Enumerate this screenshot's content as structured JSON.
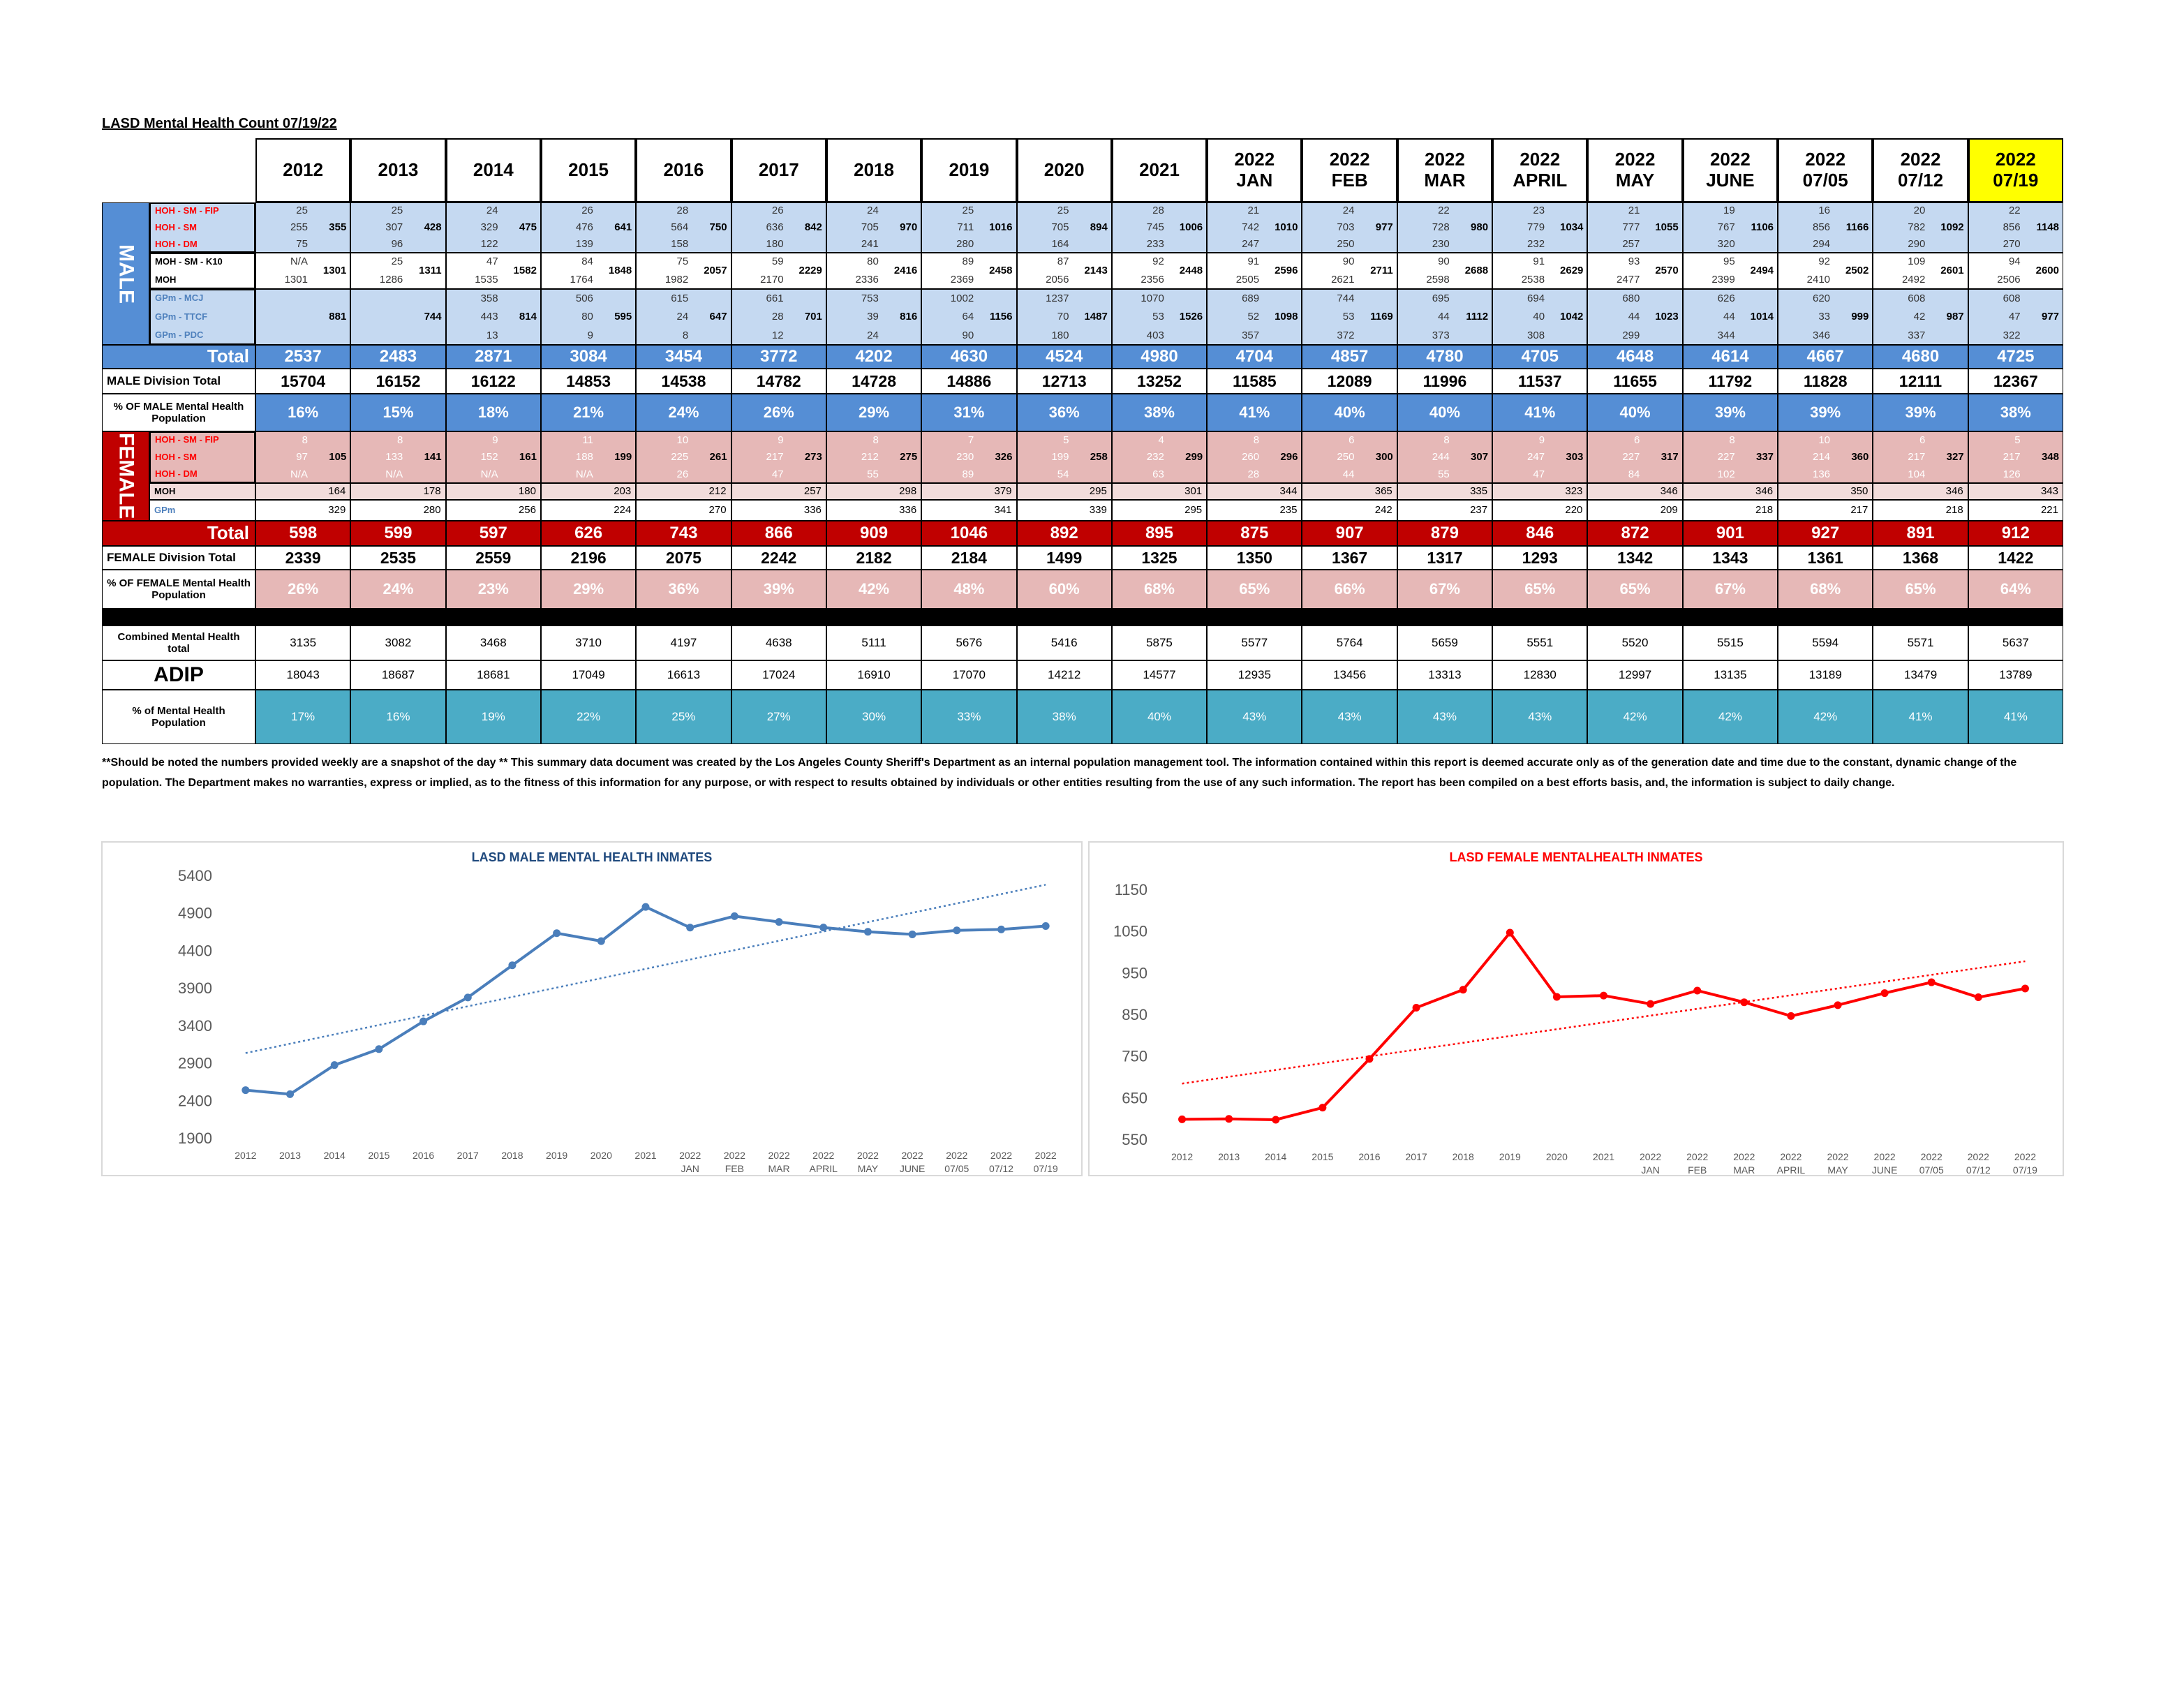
{
  "title": "LASD Mental Health Count 07/19/22",
  "columns": [
    [
      "2012"
    ],
    [
      "2013"
    ],
    [
      "2014"
    ],
    [
      "2015"
    ],
    [
      "2016"
    ],
    [
      "2017"
    ],
    [
      "2018"
    ],
    [
      "2019"
    ],
    [
      "2020"
    ],
    [
      "2021"
    ],
    [
      "2022",
      "JAN"
    ],
    [
      "2022",
      "FEB"
    ],
    [
      "2022",
      "MAR"
    ],
    [
      "2022",
      "APRIL"
    ],
    [
      "2022",
      "MAY"
    ],
    [
      "2022",
      "JUNE"
    ],
    [
      "2022",
      "07/05"
    ],
    [
      "2022",
      "07/12"
    ],
    [
      "2022",
      "07/19"
    ]
  ],
  "male": {
    "label": "MALE",
    "groups": [
      {
        "rows": [
          {
            "label": "HOH - SM - FIP",
            "values": [
              25,
              25,
              24,
              26,
              28,
              26,
              24,
              25,
              25,
              28,
              21,
              24,
              22,
              23,
              21,
              19,
              16,
              20,
              22
            ]
          },
          {
            "label": "HOH - SM",
            "values": [
              255,
              307,
              329,
              476,
              564,
              636,
              705,
              711,
              705,
              745,
              742,
              703,
              728,
              779,
              777,
              767,
              856,
              782,
              856
            ]
          },
          {
            "label": "HOH - DM",
            "values": [
              75,
              96,
              122,
              139,
              158,
              180,
              241,
              280,
              164,
              233,
              247,
              250,
              230,
              232,
              257,
              320,
              294,
              290,
              270
            ]
          }
        ],
        "subtotals": [
          355,
          428,
          475,
          641,
          750,
          842,
          970,
          1016,
          894,
          1006,
          1010,
          977,
          980,
          1034,
          1055,
          1106,
          1166,
          1092,
          1148
        ]
      },
      {
        "rows": [
          {
            "label": "MOH - SM - K10",
            "values": [
              "N/A",
              25,
              47,
              84,
              75,
              59,
              80,
              89,
              87,
              92,
              91,
              90,
              90,
              91,
              93,
              95,
              92,
              109,
              94
            ]
          },
          {
            "label": "MOH",
            "values": [
              1301,
              1286,
              1535,
              1764,
              1982,
              2170,
              2336,
              2369,
              2056,
              2356,
              2505,
              2621,
              2598,
              2538,
              2477,
              2399,
              2410,
              2492,
              2506
            ]
          }
        ],
        "subtotals": [
          1301,
          1311,
          1582,
          1848,
          2057,
          2229,
          2416,
          2458,
          2143,
          2448,
          2596,
          2711,
          2688,
          2629,
          2570,
          2494,
          2502,
          2601,
          2600
        ]
      },
      {
        "rows": [
          {
            "label": "GPm - MCJ",
            "values": [
              null,
              null,
              358,
              506,
              615,
              661,
              753,
              1002,
              1237,
              1070,
              689,
              744,
              695,
              694,
              680,
              626,
              620,
              608,
              608
            ]
          },
          {
            "label": "GPm - TTCF",
            "values": [
              null,
              null,
              443,
              80,
              24,
              28,
              39,
              64,
              70,
              53,
              52,
              53,
              44,
              40,
              44,
              44,
              33,
              42,
              47
            ]
          },
          {
            "label": "GPm - PDC",
            "values": [
              null,
              null,
              13,
              9,
              8,
              12,
              24,
              90,
              180,
              403,
              357,
              372,
              373,
              308,
              299,
              344,
              346,
              337,
              322
            ]
          }
        ],
        "subtotals": [
          881,
          744,
          814,
          595,
          647,
          701,
          816,
          1156,
          1487,
          1526,
          1098,
          1169,
          1112,
          1042,
          1023,
          1014,
          999,
          987,
          977
        ]
      }
    ],
    "total": {
      "label": "Total",
      "values": [
        2537,
        2483,
        2871,
        3084,
        3454,
        3772,
        4202,
        4630,
        4524,
        4980,
        4704,
        4857,
        4780,
        4705,
        4648,
        4614,
        4667,
        4680,
        4725
      ]
    },
    "division_total": {
      "label": "MALE Division Total",
      "values": [
        15704,
        16152,
        16122,
        14853,
        14538,
        14782,
        14728,
        14886,
        12713,
        13252,
        11585,
        12089,
        11996,
        11537,
        11655,
        11792,
        11828,
        12111,
        12367
      ]
    },
    "percent": {
      "label": "% OF MALE Mental Health Population",
      "values": [
        "16%",
        "15%",
        "18%",
        "21%",
        "24%",
        "26%",
        "29%",
        "31%",
        "36%",
        "38%",
        "41%",
        "40%",
        "40%",
        "41%",
        "40%",
        "39%",
        "39%",
        "39%",
        "38%"
      ]
    }
  },
  "female": {
    "label": "FEMALE",
    "groups": [
      {
        "rows": [
          {
            "label": "HOH - SM - FIP",
            "values": [
              8,
              8,
              9,
              11,
              10,
              9,
              8,
              7,
              5,
              4,
              8,
              6,
              8,
              9,
              6,
              8,
              10,
              6,
              5
            ]
          },
          {
            "label": "HOH - SM",
            "values": [
              97,
              133,
              152,
              188,
              225,
              217,
              212,
              230,
              199,
              232,
              260,
              250,
              244,
              247,
              227,
              227,
              214,
              217,
              217
            ]
          },
          {
            "label": "HOH - DM",
            "values": [
              "N/A",
              "N/A",
              "N/A",
              "N/A",
              26,
              47,
              55,
              89,
              54,
              63,
              28,
              44,
              55,
              47,
              84,
              102,
              136,
              104,
              126
            ]
          }
        ],
        "subtotals": [
          105,
          141,
          161,
          199,
          261,
          273,
          275,
          326,
          258,
          299,
          296,
          300,
          307,
          303,
          317,
          337,
          360,
          327,
          348
        ]
      }
    ],
    "moh": {
      "label": "MOH",
      "values": [
        164,
        178,
        180,
        203,
        212,
        257,
        298,
        379,
        295,
        301,
        344,
        365,
        335,
        323,
        346,
        346,
        350,
        346,
        343
      ]
    },
    "gpm": {
      "label": "GPm",
      "values": [
        329,
        280,
        256,
        224,
        270,
        336,
        336,
        341,
        339,
        295,
        235,
        242,
        237,
        220,
        209,
        218,
        217,
        218,
        221
      ]
    },
    "total": {
      "label": "Total",
      "values": [
        598,
        599,
        597,
        626,
        743,
        866,
        909,
        1046,
        892,
        895,
        875,
        907,
        879,
        846,
        872,
        901,
        927,
        891,
        912
      ]
    },
    "division_total": {
      "label": "FEMALE Division Total",
      "values": [
        2339,
        2535,
        2559,
        2196,
        2075,
        2242,
        2182,
        2184,
        1499,
        1325,
        1350,
        1367,
        1317,
        1293,
        1342,
        1343,
        1361,
        1368,
        1422
      ]
    },
    "percent": {
      "label": "% OF FEMALE Mental Health Population",
      "values": [
        "26%",
        "24%",
        "23%",
        "29%",
        "36%",
        "39%",
        "42%",
        "48%",
        "60%",
        "68%",
        "65%",
        "66%",
        "67%",
        "65%",
        "65%",
        "67%",
        "68%",
        "65%",
        "64%"
      ]
    }
  },
  "combined": {
    "label": "Combined Mental Health total",
    "values": [
      3135,
      3082,
      3468,
      3710,
      4197,
      4638,
      5111,
      5676,
      5416,
      5875,
      5577,
      5764,
      5659,
      5551,
      5520,
      5515,
      5594,
      5571,
      5637
    ]
  },
  "adip": {
    "label": "ADIP",
    "values": [
      18043,
      18687,
      18681,
      17049,
      16613,
      17024,
      16910,
      17070,
      14212,
      14577,
      12935,
      13456,
      13313,
      12830,
      12997,
      13135,
      13189,
      13479,
      13789
    ]
  },
  "percent_mental_health": {
    "label": "% of Mental Health Population",
    "values": [
      "17%",
      "16%",
      "19%",
      "22%",
      "25%",
      "27%",
      "30%",
      "33%",
      "38%",
      "40%",
      "43%",
      "43%",
      "43%",
      "43%",
      "42%",
      "42%",
      "42%",
      "41%",
      "41%"
    ]
  },
  "note": "**Should be noted the numbers provided weekly are a snapshot of the day ** This summary data document was created by the Los Angeles County Sheriff's Department as an internal population management tool.  The information contained within this report is deemed accurate only as of the generation date and time due to the constant, dynamic change of the population.  The Department makes no warranties, express or implied, as to the fitness of this information for any purpose, or with respect to results obtained by individuals or other entities resulting from the use of any such information.  The report has been compiled on a best efforts basis, and, the information is subject to daily change.",
  "chart_data": [
    {
      "type": "line",
      "title": "LASD MALE MENTAL HEALTH INMATES",
      "title_color": "#1f497d",
      "categories": [
        [
          "2012"
        ],
        [
          "2013"
        ],
        [
          "2014"
        ],
        [
          "2015"
        ],
        [
          "2016"
        ],
        [
          "2017"
        ],
        [
          "2018"
        ],
        [
          "2019"
        ],
        [
          "2020"
        ],
        [
          "2021"
        ],
        [
          "2022",
          "JAN"
        ],
        [
          "2022",
          "FEB"
        ],
        [
          "2022",
          "MAR"
        ],
        [
          "2022",
          "APRIL"
        ],
        [
          "2022",
          "MAY"
        ],
        [
          "2022",
          "JUNE"
        ],
        [
          "2022",
          "07/05"
        ],
        [
          "2022",
          "07/12"
        ],
        [
          "2022",
          "07/19"
        ]
      ],
      "values": [
        2537,
        2483,
        2871,
        3084,
        3454,
        3772,
        4202,
        4630,
        4524,
        4980,
        4704,
        4857,
        4780,
        4705,
        4648,
        4614,
        4667,
        4680,
        4725
      ],
      "color": "#4a7ebb",
      "markers": true,
      "trendline": "linear",
      "grid": false,
      "ylim": [
        1900,
        5400
      ],
      "yticks": [
        1900,
        2400,
        2900,
        3400,
        3900,
        4400,
        4900,
        5400
      ]
    },
    {
      "type": "line",
      "title": "LASD FEMALE MENTALHEALTH INMATES",
      "title_color": "#ff0000",
      "categories": [
        [
          "2012"
        ],
        [
          "2013"
        ],
        [
          "2014"
        ],
        [
          "2015"
        ],
        [
          "2016"
        ],
        [
          "2017"
        ],
        [
          "2018"
        ],
        [
          "2019"
        ],
        [
          "2020"
        ],
        [
          "2021"
        ],
        [
          "2022",
          "JAN"
        ],
        [
          "2022",
          "FEB"
        ],
        [
          "2022",
          "MAR"
        ],
        [
          "2022",
          "APRIL"
        ],
        [
          "2022",
          "MAY"
        ],
        [
          "2022",
          "JUNE"
        ],
        [
          "2022",
          "07/05"
        ],
        [
          "2022",
          "07/12"
        ],
        [
          "2022",
          "07/19"
        ]
      ],
      "values": [
        598,
        599,
        597,
        626,
        743,
        866,
        909,
        1046,
        892,
        895,
        875,
        907,
        879,
        846,
        872,
        901,
        927,
        891,
        912
      ],
      "color": "#ff0000",
      "markers": true,
      "trendline": "linear",
      "grid": false,
      "ylim": [
        550,
        1150
      ],
      "yticks": [
        550,
        650,
        750,
        850,
        950,
        1050,
        1150
      ]
    }
  ]
}
